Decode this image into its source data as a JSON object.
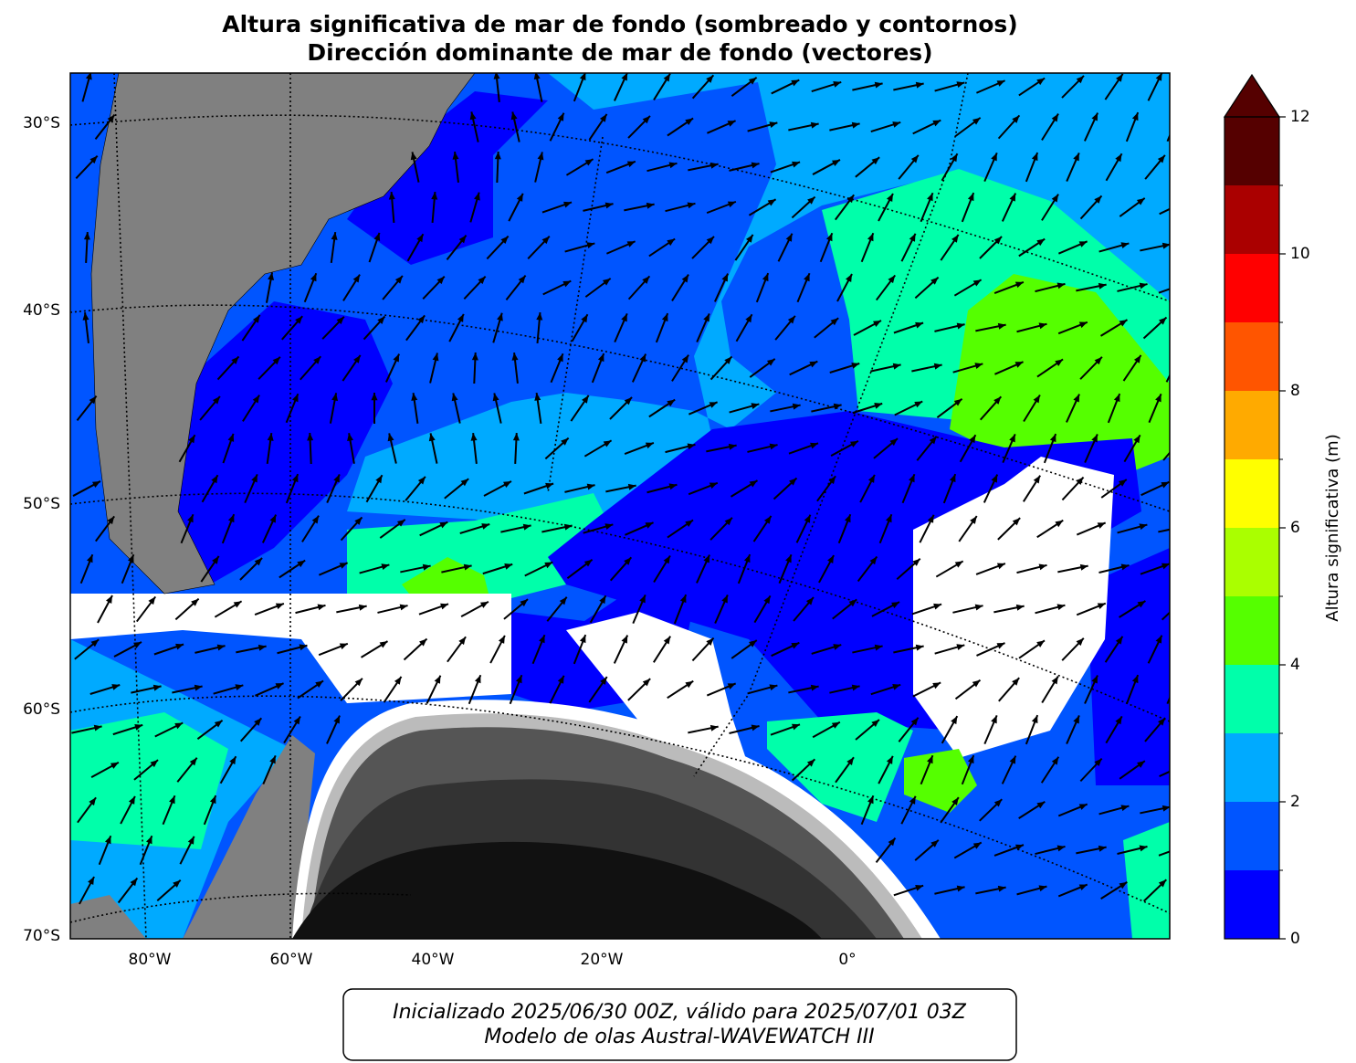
{
  "title": [
    "Altura significativa de mar de fondo (sombreado y contornos)",
    "Dirección dominante de mar de fondo (vectores)"
  ],
  "lat_labels": [
    "30°S",
    "40°S",
    "50°S",
    "60°S",
    "70°S"
  ],
  "lon_labels": [
    "80°W",
    "60°W",
    "40°W",
    "20°W",
    "0°"
  ],
  "colorbar": {
    "label": "Altura significativa (m)",
    "lim": [
      0,
      12
    ],
    "ticks": [
      0,
      2,
      4,
      6,
      8,
      10,
      12
    ],
    "levels": [
      0,
      1,
      2,
      3,
      4,
      5,
      6,
      7,
      8,
      9,
      10,
      11,
      12
    ],
    "colors": [
      "#0000ff",
      "#0055ff",
      "#00aaff",
      "#00ffaa",
      "#55ff00",
      "#aaff00",
      "#ffff00",
      "#ffaa00",
      "#ff5500",
      "#ff0000",
      "#aa0000",
      "#550000"
    ],
    "extend_color": "#550000"
  },
  "footer": [
    "Inicializado 2025/06/30 00Z, válido para 2025/07/01 03Z",
    "Modelo de olas Austral-WAVEWATCH III"
  ]
}
